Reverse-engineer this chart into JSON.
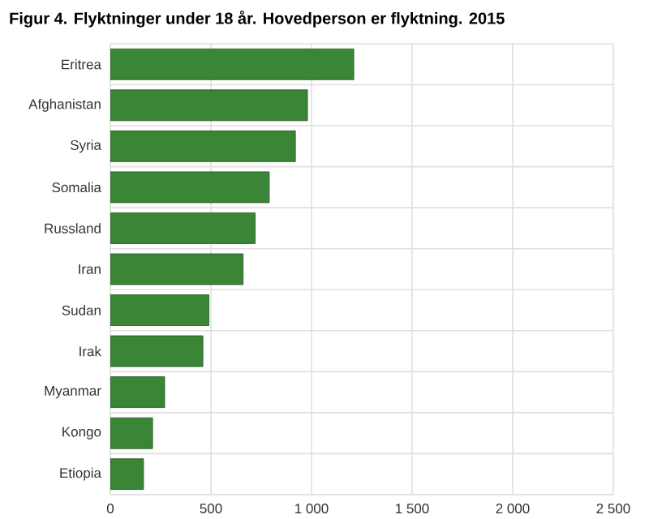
{
  "chart_data": {
    "type": "bar",
    "orientation": "horizontal",
    "title": "Figur 4. Flyktninger under 18 år. Hovedperson er flyktning. 2015",
    "categories": [
      "Eritrea",
      "Afghanistan",
      "Syria",
      "Somalia",
      "Russland",
      "Iran",
      "Sudan",
      "Irak",
      "Myanmar",
      "Kongo",
      "Etiopia"
    ],
    "values": [
      1210,
      980,
      920,
      790,
      720,
      660,
      490,
      460,
      270,
      210,
      165
    ],
    "color": "#3a8536",
    "xlim": [
      0,
      2500
    ],
    "xticks": [
      0,
      500,
      {
        "value": 1000,
        "label": "1 000"
      },
      {
        "value": 1500,
        "label": "1 500"
      },
      {
        "value": 2000,
        "label": "2 000"
      },
      {
        "value": 2500,
        "label": "2 500"
      }
    ],
    "grid": true
  }
}
